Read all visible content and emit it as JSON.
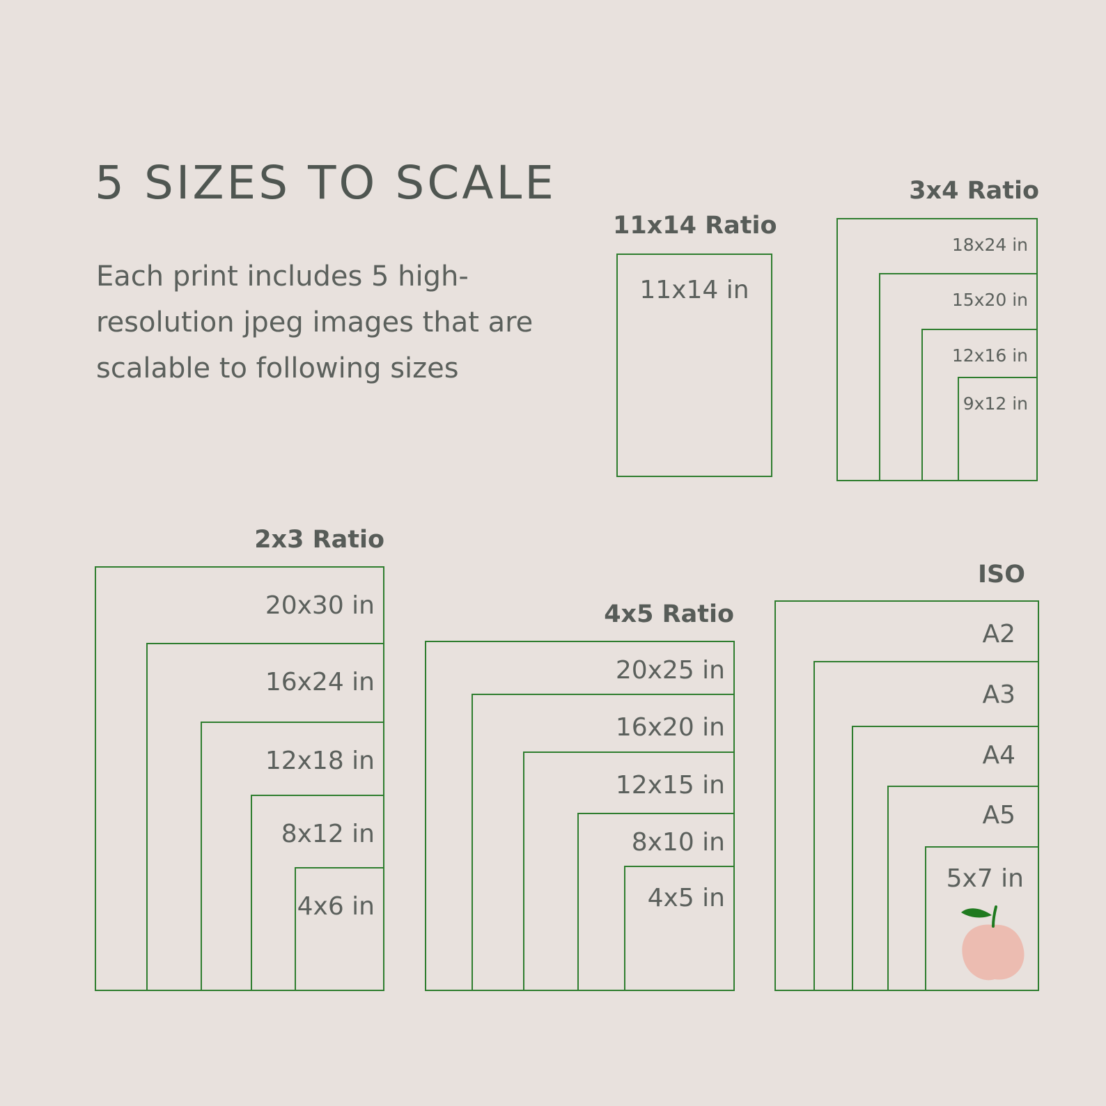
{
  "title": "5 SIZES TO SCALE",
  "description": "Each print includes 5 high-resolution jpeg images that are scalable to following sizes",
  "groups": {
    "r11x14": {
      "title": "11x14 Ratio",
      "sizes": [
        "11x14 in"
      ]
    },
    "r3x4": {
      "title": "3x4 Ratio",
      "sizes": [
        "18x24 in",
        "15x20 in",
        "12x16 in",
        "9x12 in"
      ]
    },
    "r2x3": {
      "title": "2x3 Ratio",
      "sizes": [
        "20x30 in",
        "16x24 in",
        "12x18 in",
        "8x12 in",
        "4x6 in"
      ]
    },
    "r4x5": {
      "title": "4x5 Ratio",
      "sizes": [
        "20x25 in",
        "16x20 in",
        "12x15 in",
        "8x10 in",
        "4x5 in"
      ]
    },
    "iso": {
      "title": "ISO",
      "sizes": [
        "A2",
        "A3",
        "A4",
        "A5",
        "5x7 in"
      ]
    }
  },
  "colors": {
    "background": "#e8e1dd",
    "frame": "#2e7d2e",
    "text": "#545a55",
    "peach": "#ecbcb1",
    "leaf": "#1f7a1f"
  },
  "icons": {
    "decoration": "peach-icon"
  }
}
